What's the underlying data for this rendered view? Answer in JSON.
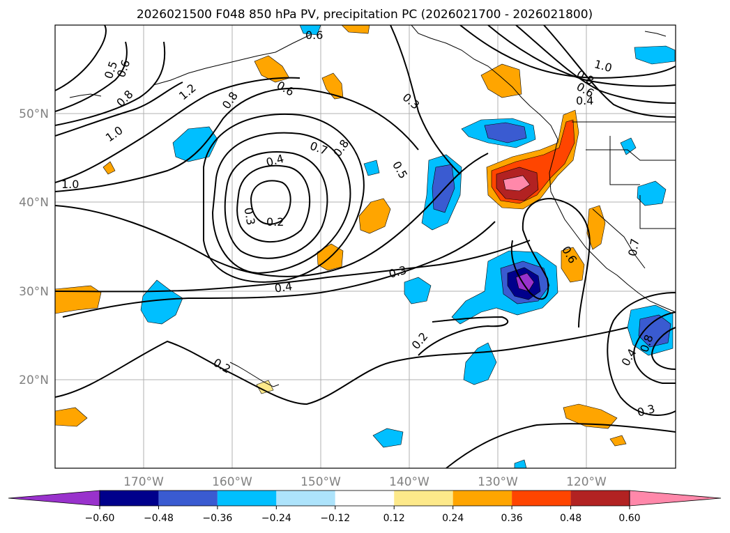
{
  "title": "2026021500 F048 850 hPa PV, precipitation PC (2026021700 - 2026021800)",
  "map": {
    "lat_labels": [
      {
        "lat": 50,
        "text": "50°N"
      },
      {
        "lat": 40,
        "text": "40°N"
      },
      {
        "lat": 30,
        "text": "30°N"
      },
      {
        "lat": 20,
        "text": "20°N"
      }
    ],
    "lon_labels": [
      {
        "lon": -170,
        "text": "170°W"
      },
      {
        "lon": -160,
        "text": "160°W"
      },
      {
        "lon": -150,
        "text": "150°W"
      },
      {
        "lon": -140,
        "text": "140°W"
      },
      {
        "lon": -130,
        "text": "130°W"
      },
      {
        "lon": -120,
        "text": "120°W"
      }
    ],
    "contour_labels": [
      "0.6",
      "0.5",
      "0.6",
      "0.8",
      "1.2",
      "0.8",
      "0.6",
      "0.3",
      "1.0",
      "0.8",
      "0.6",
      "0.4",
      "1.0",
      "0.8",
      "0.7",
      "0.4",
      "0.5",
      "1.0",
      "0.3",
      "0.2",
      "0.3",
      "0.4",
      "0.2",
      "0.2",
      "0.6",
      "0.7",
      "0.4",
      "0.8",
      "0.3"
    ]
  },
  "colorbar": {
    "ticks": [
      "−0.60",
      "−0.48",
      "−0.36",
      "−0.24",
      "−0.12",
      "0.12",
      "0.24",
      "0.36",
      "0.48",
      "0.60"
    ],
    "colors": [
      "#9932cc",
      "#00008b",
      "#3a5bd1",
      "#00bfff",
      "#ade3fb",
      "#ffffff",
      "#fde98a",
      "#ffa500",
      "#ff4500",
      "#b22222",
      "#ff88aa"
    ]
  }
}
